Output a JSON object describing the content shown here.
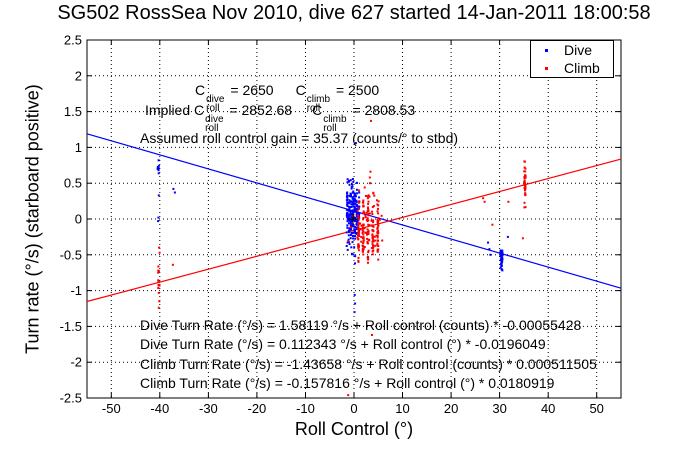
{
  "chart_data": {
    "type": "scatter",
    "title": "SG502 RossSea Nov 2010, dive 627 started 14-Jan-2011 18:00:58",
    "xlabel": "Roll Control (°)",
    "ylabel": "Turn rate (°/s) (starboard positive)",
    "xlim": [
      -55,
      55
    ],
    "ylim": [
      -2.5,
      2.5
    ],
    "xticks": [
      -50,
      -40,
      -30,
      -20,
      -10,
      0,
      10,
      20,
      30,
      40,
      50
    ],
    "yticks": [
      -2.5,
      -2,
      -1.5,
      -1,
      -0.5,
      0,
      0.5,
      1,
      1.5,
      2,
      2.5
    ],
    "grid": true,
    "legend": {
      "position": "top-right",
      "entries": [
        {
          "label": "Dive",
          "color": "#0000ff"
        },
        {
          "label": "Climb",
          "color": "#ff0000"
        }
      ]
    },
    "series": [
      {
        "name": "Dive",
        "color": "#0000ff",
        "marker": "point",
        "clusters": [
          {
            "kind": "streaks",
            "x": [
              -1.4,
              -1.0,
              -0.6,
              -0.2,
              0.2,
              0.6,
              1.0
            ],
            "x_jitter": 0.12,
            "y_mean": 0.08,
            "y_sd": 0.2,
            "y_min": -0.5,
            "y_max": 0.62,
            "n_per_streak": 26
          },
          {
            "kind": "gauss",
            "x_mean": -0.4,
            "x_sd": 0.6,
            "y_mean": 0.0,
            "y_sd": 0.28,
            "y_min": -0.55,
            "y_max": 0.6,
            "n": 55
          },
          {
            "kind": "streaks",
            "x": [
              30.4
            ],
            "x_jitter": 0.2,
            "y_mean": -0.55,
            "y_sd": 0.12,
            "y_min": -0.82,
            "y_max": -0.33,
            "n_per_streak": 45
          },
          {
            "kind": "streaks",
            "x": [
              -40.3
            ],
            "x_jitter": 0.15,
            "y_mean": 0.7,
            "y_sd": 0.06,
            "y_min": 0.58,
            "y_max": 0.82,
            "n_per_streak": 10
          }
        ],
        "extra_points": [
          [
            -37.2,
            0.42
          ],
          [
            -36.9,
            0.37
          ],
          [
            -40.3,
            0.02
          ],
          [
            -40.35,
            -0.03
          ],
          [
            -40.2,
            0.33
          ],
          [
            0.4,
            1.06
          ],
          [
            0.25,
            -0.52
          ],
          [
            0.2,
            -0.62
          ],
          [
            0.15,
            -1.06
          ],
          [
            0.22,
            -1.18
          ],
          [
            0.1,
            -1.3
          ],
          [
            27.6,
            -0.33
          ],
          [
            27.9,
            -0.42
          ],
          [
            28.1,
            -0.5
          ],
          [
            31.7,
            -0.25
          ],
          [
            2.9,
            -0.55
          ],
          [
            1.9,
            -0.38
          ]
        ]
      },
      {
        "name": "Climb",
        "color": "#ff0000",
        "marker": "point",
        "clusters": [
          {
            "kind": "streaks",
            "x": [
              0.9,
              1.9,
              2.9,
              3.9,
              4.9
            ],
            "x_jitter": 0.12,
            "y_mean": -0.18,
            "y_sd": 0.24,
            "y_min": -0.62,
            "y_max": 0.45,
            "n_per_streak": 34
          },
          {
            "kind": "gauss",
            "x_mean": 2.8,
            "x_sd": 1.3,
            "y_mean": -0.12,
            "y_sd": 0.28,
            "y_min": -0.65,
            "y_max": 0.4,
            "n": 60
          },
          {
            "kind": "streaks",
            "x": [
              35.2
            ],
            "x_jitter": 0.15,
            "y_mean": 0.45,
            "y_sd": 0.16,
            "y_min": 0.14,
            "y_max": 0.81,
            "n_per_streak": 40
          },
          {
            "kind": "streaks",
            "x": [
              -40.2
            ],
            "x_jitter": 0.15,
            "y_mean": -0.85,
            "y_sd": 0.12,
            "y_min": -1.06,
            "y_max": -0.6,
            "n_per_streak": 13
          }
        ],
        "extra_points": [
          [
            3.3,
            0.5
          ],
          [
            3.25,
            0.58
          ],
          [
            3.4,
            0.66
          ],
          [
            2.2,
            0.44
          ],
          [
            1.0,
            0.4
          ],
          [
            -40.1,
            -1.15
          ],
          [
            -40.2,
            -1.24
          ],
          [
            -37.3,
            -0.64
          ],
          [
            -40.15,
            -0.4
          ],
          [
            -40.05,
            -0.47
          ],
          [
            3.5,
            1.37
          ],
          [
            3.7,
            -1.62
          ],
          [
            -1.2,
            -2.46
          ],
          [
            28.5,
            -0.08
          ],
          [
            31.8,
            0.24
          ],
          [
            34.8,
            -0.27
          ],
          [
            26.6,
            0.29
          ],
          [
            26.9,
            0.24
          ],
          [
            5.8,
            -0.3
          ]
        ]
      }
    ],
    "fit_lines": [
      {
        "series": "Dive",
        "color": "#0000ff",
        "intercept": 0.112343,
        "slope": -0.0196049
      },
      {
        "series": "Climb",
        "color": "#ff0000",
        "intercept": -0.157816,
        "slope": 0.0180919
      }
    ],
    "markers": [
      {
        "shape": "plus",
        "color": "#000000",
        "x": -0.2,
        "y": 0
      }
    ]
  },
  "annotations": {
    "upper": {
      "line1": {
        "c1": {
          "base": "C",
          "sup": "dive",
          "sub": "roll",
          "value": " = 2650"
        },
        "c2": {
          "base": "C",
          "sup": "climb",
          "sub": "roll",
          "value": " = 2500"
        }
      },
      "line2": {
        "prefix": "Implied ",
        "c1": {
          "base": "C",
          "sup": "dive",
          "sub": "roll",
          "value": " = 2852.68"
        },
        "c2": {
          "base": "C",
          "sup": "climb",
          "sub": "roll",
          "value": " = 2808.53"
        }
      },
      "line3": "Assumed roll control gain = 35.37 (counts/° to stbd)"
    },
    "fits": [
      "Dive Turn Rate (°/s) = 1.58119 °/s + Roll control (counts) * -0.00055428",
      "Dive Turn Rate (°/s) = 0.112343 °/s + Roll control (°) * -0.0196049",
      "Climb Turn Rate (°/s) = -1.43658 °/s + Roll control (counts) * 0.000511505",
      "Climb Turn Rate (°/s) = -0.157816 °/s + Roll control (°) * 0.0180919"
    ]
  }
}
